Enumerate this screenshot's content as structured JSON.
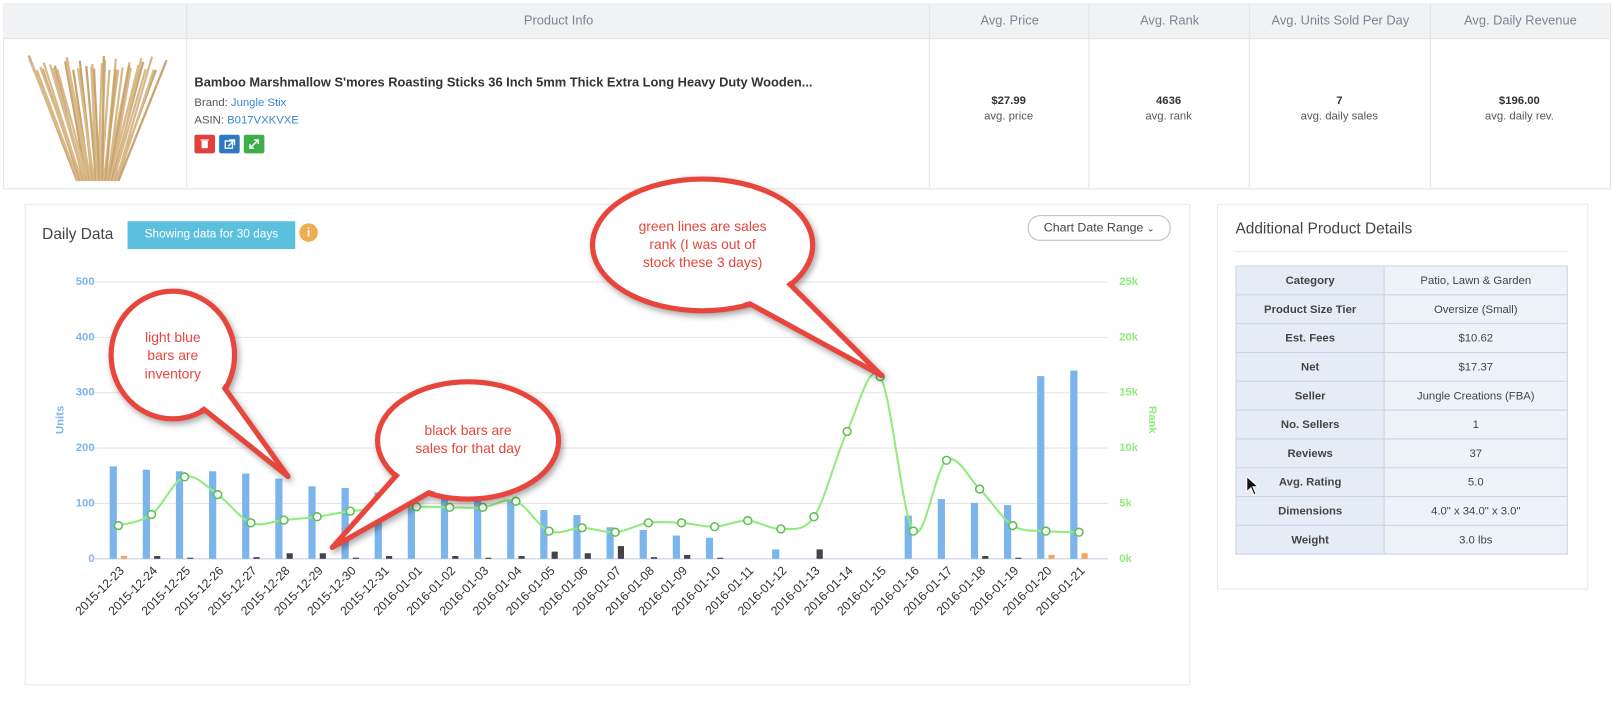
{
  "product_table": {
    "headers": [
      "Product Info",
      "Avg. Price",
      "Avg. Rank",
      "Avg. Units Sold Per Day",
      "Avg. Daily Revenue"
    ],
    "product": {
      "title": "Bamboo Marshmallow S'mores Roasting Sticks 36 Inch 5mm Thick Extra Long Heavy Duty Wooden...",
      "brand_label": "Brand:",
      "brand": "Jungle Stix",
      "asin_label": "ASIN:",
      "asin": "B017VXKVXE"
    },
    "stats": [
      {
        "value": "$27.99",
        "label": "avg. price"
      },
      {
        "value": "4636",
        "label": "avg. rank"
      },
      {
        "value": "7",
        "label": "avg. daily sales"
      },
      {
        "value": "$196.00",
        "label": "avg. daily rev."
      }
    ]
  },
  "chart_panel": {
    "title": "Daily Data",
    "badge": "Showing data for 30 days",
    "date_range_button": "Chart Date Range"
  },
  "chart_data": {
    "type": "bar",
    "categories": [
      "2015-12-23",
      "2015-12-24",
      "2015-12-25",
      "2015-12-26",
      "2015-12-27",
      "2015-12-28",
      "2015-12-29",
      "2015-12-30",
      "2015-12-31",
      "2016-01-01",
      "2016-01-02",
      "2016-01-03",
      "2016-01-04",
      "2016-01-05",
      "2016-01-06",
      "2016-01-07",
      "2016-01-08",
      "2016-01-09",
      "2016-01-10",
      "2016-01-11",
      "2016-01-12",
      "2016-01-13",
      "2016-01-14",
      "2016-01-15",
      "2016-01-16",
      "2016-01-17",
      "2016-01-18",
      "2016-01-19",
      "2016-01-20",
      "2016-01-21"
    ],
    "series": [
      {
        "type": "bar",
        "color": "#7cb5ec",
        "values": [
          167,
          161,
          158,
          158,
          154,
          145,
          131,
          128,
          120,
          115,
          113,
          110,
          105,
          88,
          79,
          57,
          52,
          42,
          38,
          0,
          17,
          0,
          0,
          0,
          78,
          108,
          101,
          97,
          330,
          340
        ]
      },
      {
        "type": "bar",
        "color": "#434348",
        "values": [
          0,
          5,
          2,
          0,
          3,
          10,
          10,
          2,
          5,
          0,
          5,
          2,
          5,
          13,
          10,
          23,
          3,
          7,
          2,
          0,
          0,
          17,
          0,
          0,
          0,
          0,
          5,
          2,
          0,
          0
        ]
      },
      {
        "type": "bar",
        "color": "#f7a35c",
        "values": [
          5,
          0,
          0,
          0,
          0,
          0,
          0,
          0,
          0,
          0,
          0,
          0,
          0,
          0,
          0,
          0,
          0,
          0,
          0,
          0,
          0,
          0,
          0,
          0,
          0,
          0,
          0,
          0,
          7,
          10
        ]
      },
      {
        "type": "line",
        "axis": "y2",
        "color": "#90ed7d",
        "values": [
          3000,
          4000,
          7400,
          5800,
          3250,
          3500,
          3800,
          4300,
          4500,
          4700,
          4650,
          4650,
          5200,
          2500,
          2800,
          2400,
          3250,
          3250,
          2900,
          3450,
          2700,
          3800,
          11500,
          16450,
          2500,
          8900,
          6300,
          3000,
          2500,
          2400
        ]
      }
    ],
    "ylim": [
      0,
      500
    ],
    "yticks": [
      0,
      100,
      200,
      300,
      400,
      500
    ],
    "y2lim": [
      0,
      25000
    ],
    "y2ticks": [
      {
        "value": 0,
        "label": "0k"
      },
      {
        "value": 5000,
        "label": "5k"
      },
      {
        "value": 10000,
        "label": "10k"
      },
      {
        "value": 15000,
        "label": "15k"
      },
      {
        "value": 20000,
        "label": "20k"
      },
      {
        "value": 25000,
        "label": "25k"
      }
    ],
    "y_label": "Units",
    "y2_label": "Rank",
    "grid": true,
    "annotations": [
      {
        "lines": [
          "light blue",
          "bars are",
          "inventory"
        ]
      },
      {
        "lines": [
          "black bars are",
          "sales for that day"
        ]
      },
      {
        "lines": [
          "green lines are sales",
          "rank (I was out of",
          "stock these 3 days)"
        ]
      }
    ]
  },
  "details": {
    "title": "Additional Product Details",
    "rows": [
      [
        "Category",
        "Patio, Lawn & Garden"
      ],
      [
        "Product Size Tier",
        "Oversize (Small)"
      ],
      [
        "Est. Fees",
        "$10.62"
      ],
      [
        "Net",
        "$17.37"
      ],
      [
        "Seller",
        "Jungle Creations (FBA)"
      ],
      [
        "No. Sellers",
        "1"
      ],
      [
        "Reviews",
        "37"
      ],
      [
        "Avg. Rating",
        "5.0"
      ],
      [
        "Dimensions",
        "4.0\" x 34.0\" x 3.0\""
      ],
      [
        "Weight",
        "3.0 lbs"
      ]
    ]
  }
}
